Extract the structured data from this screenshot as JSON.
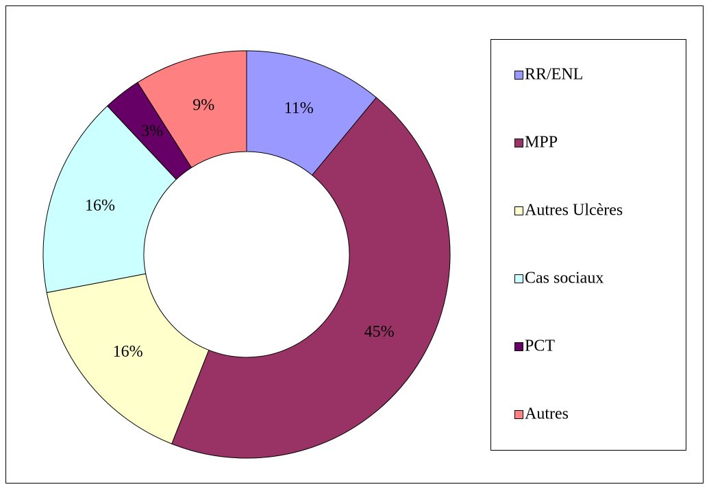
{
  "chart_data": {
    "type": "donut",
    "categories": [
      "RR/ENL",
      "MPP",
      "Autres Ulcères",
      "Cas sociaux",
      "PCT",
      "Autres"
    ],
    "values": [
      11,
      45,
      16,
      16,
      3,
      9
    ],
    "value_labels": [
      "11%",
      "45%",
      "16%",
      "16%",
      "3%",
      "9%"
    ],
    "colors": [
      "#9999ff",
      "#993366",
      "#ffffcc",
      "#ccffff",
      "#660066",
      "#ff8080"
    ],
    "legend": "right"
  }
}
